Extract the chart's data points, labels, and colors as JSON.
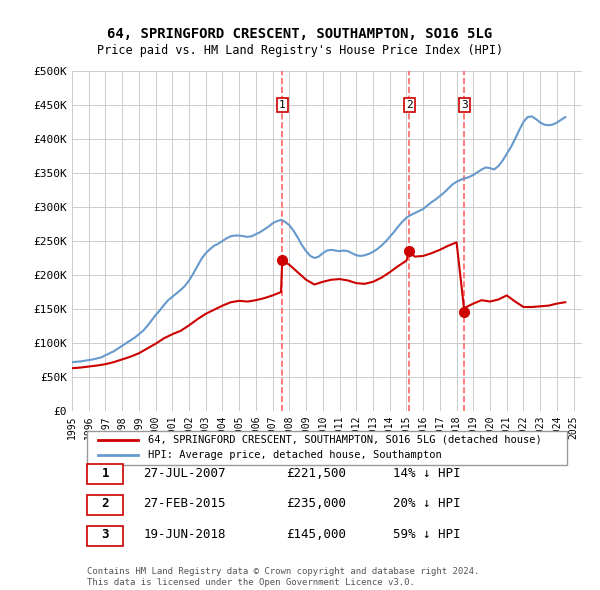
{
  "title": "64, SPRINGFORD CRESCENT, SOUTHAMPTON, SO16 5LG",
  "subtitle": "Price paid vs. HM Land Registry's House Price Index (HPI)",
  "ylim": [
    0,
    500000
  ],
  "yticks": [
    0,
    50000,
    100000,
    150000,
    200000,
    250000,
    300000,
    350000,
    400000,
    450000,
    500000
  ],
  "ytick_labels": [
    "£0",
    "£50K",
    "£100K",
    "£150K",
    "£200K",
    "£250K",
    "£300K",
    "£350K",
    "£400K",
    "£450K",
    "£500K"
  ],
  "xlim_start": 1995.0,
  "xlim_end": 2025.5,
  "sale_dates": [
    2007.57,
    2015.16,
    2018.47
  ],
  "sale_prices": [
    221500,
    235000,
    145000
  ],
  "sale_labels": [
    "1",
    "2",
    "3"
  ],
  "property_color": "#cc0000",
  "hpi_color": "#6699cc",
  "vline_color": "#ff6666",
  "dot_color": "#cc0000",
  "background_color": "#ffffff",
  "grid_color": "#cccccc",
  "legend_entries": [
    "64, SPRINGFORD CRESCENT, SOUTHAMPTON, SO16 5LG (detached house)",
    "HPI: Average price, detached house, Southampton"
  ],
  "table_rows": [
    {
      "num": "1",
      "date": "27-JUL-2007",
      "price": "£221,500",
      "pct": "14% ↓ HPI"
    },
    {
      "num": "2",
      "date": "27-FEB-2015",
      "price": "£235,000",
      "pct": "20% ↓ HPI"
    },
    {
      "num": "3",
      "date": "19-JUN-2018",
      "price": "£145,000",
      "pct": "59% ↓ HPI"
    }
  ],
  "footer": "Contains HM Land Registry data © Crown copyright and database right 2024.\nThis data is licensed under the Open Government Licence v3.0.",
  "hpi_data_x": [
    1995.0,
    1995.25,
    1995.5,
    1995.75,
    1996.0,
    1996.25,
    1996.5,
    1996.75,
    1997.0,
    1997.25,
    1997.5,
    1997.75,
    1998.0,
    1998.25,
    1998.5,
    1998.75,
    1999.0,
    1999.25,
    1999.5,
    1999.75,
    2000.0,
    2000.25,
    2000.5,
    2000.75,
    2001.0,
    2001.25,
    2001.5,
    2001.75,
    2002.0,
    2002.25,
    2002.5,
    2002.75,
    2003.0,
    2003.25,
    2003.5,
    2003.75,
    2004.0,
    2004.25,
    2004.5,
    2004.75,
    2005.0,
    2005.25,
    2005.5,
    2005.75,
    2006.0,
    2006.25,
    2006.5,
    2006.75,
    2007.0,
    2007.25,
    2007.5,
    2007.75,
    2008.0,
    2008.25,
    2008.5,
    2008.75,
    2009.0,
    2009.25,
    2009.5,
    2009.75,
    2010.0,
    2010.25,
    2010.5,
    2010.75,
    2011.0,
    2011.25,
    2011.5,
    2011.75,
    2012.0,
    2012.25,
    2012.5,
    2012.75,
    2013.0,
    2013.25,
    2013.5,
    2013.75,
    2014.0,
    2014.25,
    2014.5,
    2014.75,
    2015.0,
    2015.25,
    2015.5,
    2015.75,
    2016.0,
    2016.25,
    2016.5,
    2016.75,
    2017.0,
    2017.25,
    2017.5,
    2017.75,
    2018.0,
    2018.25,
    2018.5,
    2018.75,
    2019.0,
    2019.25,
    2019.5,
    2019.75,
    2020.0,
    2020.25,
    2020.5,
    2020.75,
    2021.0,
    2021.25,
    2021.5,
    2021.75,
    2022.0,
    2022.25,
    2022.5,
    2022.75,
    2023.0,
    2023.25,
    2023.5,
    2023.75,
    2024.0,
    2024.25,
    2024.5
  ],
  "hpi_data_y": [
    72000,
    72500,
    73000,
    74000,
    75000,
    76000,
    77500,
    79000,
    82000,
    85000,
    88000,
    92000,
    96000,
    100000,
    104000,
    108000,
    113000,
    118000,
    125000,
    133000,
    141000,
    148000,
    156000,
    163000,
    168000,
    173000,
    178000,
    184000,
    192000,
    202000,
    213000,
    224000,
    232000,
    238000,
    243000,
    246000,
    250000,
    254000,
    257000,
    258000,
    258000,
    257000,
    256000,
    257000,
    260000,
    263000,
    267000,
    271000,
    276000,
    279000,
    281000,
    278000,
    273000,
    265000,
    255000,
    244000,
    235000,
    228000,
    225000,
    227000,
    232000,
    236000,
    237000,
    236000,
    235000,
    236000,
    235000,
    232000,
    229000,
    228000,
    229000,
    231000,
    234000,
    238000,
    243000,
    249000,
    256000,
    263000,
    271000,
    278000,
    284000,
    288000,
    291000,
    294000,
    297000,
    302000,
    307000,
    311000,
    316000,
    321000,
    327000,
    333000,
    337000,
    340000,
    342000,
    344000,
    347000,
    351000,
    355000,
    358000,
    357000,
    355000,
    360000,
    368000,
    378000,
    388000,
    400000,
    413000,
    425000,
    432000,
    433000,
    429000,
    424000,
    421000,
    420000,
    421000,
    424000,
    428000,
    432000
  ],
  "property_data_x": [
    1995.0,
    1995.5,
    1996.0,
    1996.5,
    1997.0,
    1997.5,
    1998.0,
    1998.5,
    1999.0,
    1999.5,
    2000.0,
    2000.5,
    2001.0,
    2001.5,
    2002.0,
    2002.5,
    2003.0,
    2003.5,
    2004.0,
    2004.5,
    2005.0,
    2005.5,
    2006.0,
    2006.5,
    2007.0,
    2007.5,
    2007.57,
    2008.0,
    2008.5,
    2009.0,
    2009.5,
    2010.0,
    2010.5,
    2011.0,
    2011.5,
    2012.0,
    2012.5,
    2013.0,
    2013.5,
    2014.0,
    2014.5,
    2015.0,
    2015.16,
    2015.5,
    2016.0,
    2016.5,
    2017.0,
    2017.5,
    2018.0,
    2018.47,
    2018.5,
    2019.0,
    2019.5,
    2020.0,
    2020.5,
    2021.0,
    2021.5,
    2022.0,
    2022.5,
    2023.0,
    2023.5,
    2024.0,
    2024.5
  ],
  "property_data_y": [
    63000,
    64000,
    65500,
    67000,
    69000,
    72000,
    76000,
    80000,
    85000,
    92000,
    99000,
    107000,
    113000,
    118000,
    126000,
    135000,
    143000,
    149000,
    155000,
    160000,
    162000,
    161000,
    163000,
    166000,
    170000,
    175000,
    221500,
    215000,
    204000,
    193000,
    186000,
    190000,
    193000,
    194000,
    192000,
    188000,
    187000,
    190000,
    196000,
    204000,
    213000,
    221000,
    235000,
    227000,
    228000,
    232000,
    237000,
    243000,
    248000,
    145000,
    152000,
    158000,
    163000,
    161000,
    164000,
    170000,
    161000,
    153000,
    153000,
    154000,
    155000,
    158000,
    160000
  ]
}
